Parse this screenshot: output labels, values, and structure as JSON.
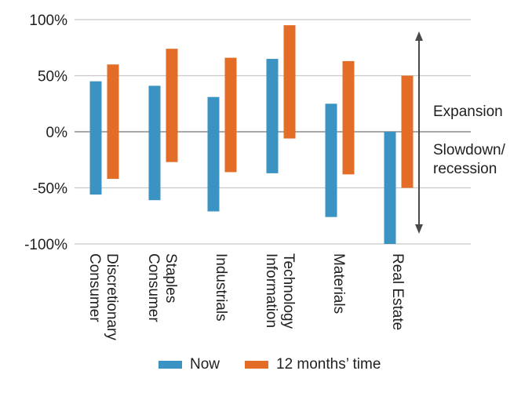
{
  "chart_data": {
    "type": "bar",
    "subtype": "floating-range",
    "categories": [
      [
        "Consumer",
        "Discretionary"
      ],
      [
        "Consumer",
        "Staples"
      ],
      [
        "Industrials"
      ],
      [
        "Information",
        "Technology"
      ],
      [
        "Materials"
      ],
      [
        "Real Estate"
      ]
    ],
    "series": [
      {
        "name": "Now",
        "color": "#3a93c3",
        "low": [
          -56,
          -61,
          -71,
          -37,
          -76,
          -100
        ],
        "high": [
          45,
          41,
          31,
          65,
          25,
          0
        ]
      },
      {
        "name": "12 months’ time",
        "color": "#e36c27",
        "low": [
          -42,
          -27,
          -36,
          -6,
          -38,
          -50
        ],
        "high": [
          60,
          74,
          66,
          95,
          63,
          50
        ]
      }
    ],
    "ylim": [
      -100,
      100
    ],
    "yticks": [
      100,
      50,
      0,
      -50,
      -100
    ],
    "ytick_labels": [
      "100%",
      "50%",
      "0%",
      "-50%",
      "-100%"
    ],
    "grid": true,
    "legend_position": "bottom",
    "annotations": {
      "expansion": "Expansion",
      "slowdown": [
        "Slowdown/",
        "recession"
      ]
    }
  },
  "colors": {
    "now": "#3a93c3",
    "future": "#e36c27",
    "grid": "#c8c8c8",
    "axis": "#8c8c8c",
    "arrow": "#4a4a4a"
  }
}
